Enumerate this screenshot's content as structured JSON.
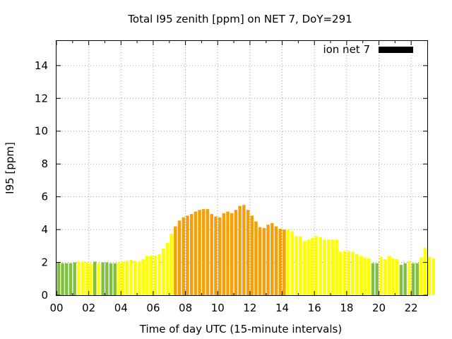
{
  "chart_data": {
    "type": "bar",
    "title": "Total I95 zenith [ppm] on NET 7, DoY=291",
    "xlabel": "Time of day UTC (15-minute intervals)",
    "ylabel": "I95 [ppm]",
    "xlim": [
      0,
      23
    ],
    "ylim": [
      0,
      15.5
    ],
    "x_ticks": [
      "00",
      "02",
      "04",
      "06",
      "08",
      "10",
      "12",
      "14",
      "16",
      "18",
      "20",
      "22"
    ],
    "y_ticks": [
      "0",
      "2",
      "4",
      "6",
      "8",
      "10",
      "12",
      "14"
    ],
    "grid": true,
    "legend": {
      "label": "ion net 7",
      "position": "top-right",
      "color": "#000000"
    },
    "interval_hours": 0.25,
    "level_colors": {
      "low": "#80c040",
      "medium": "#ffff00",
      "high": "#f5a00a"
    },
    "values": [
      2.0,
      1.95,
      1.95,
      1.95,
      2.0,
      2.05,
      2.05,
      2.0,
      1.95,
      2.05,
      1.95,
      2.0,
      2.0,
      1.95,
      1.95,
      2.0,
      2.05,
      2.1,
      2.15,
      2.1,
      2.05,
      2.2,
      2.4,
      2.4,
      2.4,
      2.5,
      2.85,
      3.2,
      3.75,
      4.2,
      4.55,
      4.75,
      4.85,
      4.95,
      5.1,
      5.2,
      5.25,
      5.25,
      4.95,
      4.8,
      4.75,
      5.0,
      5.1,
      5.0,
      5.2,
      5.45,
      5.5,
      5.2,
      4.85,
      4.5,
      4.15,
      4.1,
      4.3,
      4.4,
      4.2,
      4.05,
      4.0,
      4.0,
      3.9,
      3.6,
      3.6,
      3.3,
      3.4,
      3.5,
      3.6,
      3.55,
      3.4,
      3.4,
      3.4,
      3.4,
      2.65,
      2.7,
      2.7,
      2.65,
      2.5,
      2.4,
      2.3,
      2.25,
      1.95,
      1.95,
      2.35,
      2.2,
      2.4,
      2.25,
      2.2,
      1.85,
      1.95,
      2.1,
      1.95,
      1.95,
      2.3,
      2.9,
      2.35,
      2.25
    ],
    "levels": [
      "low",
      "low",
      "low",
      "low",
      "low",
      "medium",
      "medium",
      "medium",
      "medium",
      "low",
      "medium",
      "low",
      "low",
      "low",
      "low",
      "medium",
      "medium",
      "medium",
      "medium",
      "medium",
      "medium",
      "medium",
      "medium",
      "medium",
      "medium",
      "medium",
      "medium",
      "medium",
      "medium",
      "high",
      "high",
      "high",
      "high",
      "high",
      "high",
      "high",
      "high",
      "high",
      "high",
      "high",
      "high",
      "high",
      "high",
      "high",
      "high",
      "high",
      "high",
      "high",
      "high",
      "high",
      "high",
      "high",
      "high",
      "high",
      "high",
      "high",
      "high",
      "medium",
      "medium",
      "medium",
      "medium",
      "medium",
      "medium",
      "medium",
      "medium",
      "medium",
      "medium",
      "medium",
      "medium",
      "medium",
      "medium",
      "medium",
      "medium",
      "medium",
      "medium",
      "medium",
      "medium",
      "medium",
      "low",
      "low",
      "medium",
      "medium",
      "medium",
      "medium",
      "medium",
      "low",
      "low",
      "medium",
      "low",
      "low",
      "medium",
      "medium",
      "medium",
      "medium"
    ]
  }
}
